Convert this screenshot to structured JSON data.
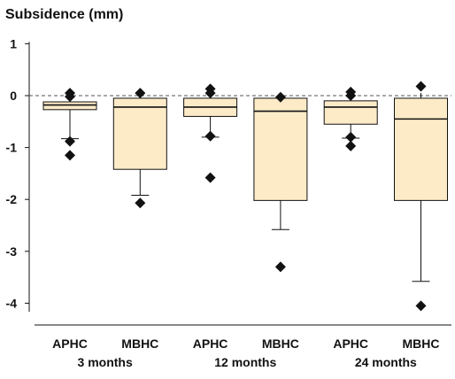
{
  "chart_data": {
    "type": "box",
    "title": "Subsidence (mm)",
    "ylabel": "Subsidence (mm)",
    "xlabel": "",
    "ylim": [
      -4.2,
      1.0
    ],
    "yticks": [
      1,
      0,
      -1,
      -2,
      -3,
      -4
    ],
    "ytick_labels": [
      "1",
      "0",
      "-1",
      "-2",
      "-3",
      "-4"
    ],
    "reference_line": {
      "y": 0,
      "style": "dashed"
    },
    "grid": false,
    "box_fill": "#fdebc8",
    "box_stroke": "#111111",
    "marker": "diamond",
    "categories": [
      "APHC",
      "MBHC",
      "APHC",
      "MBHC",
      "APHC",
      "MBHC"
    ],
    "groups": [
      {
        "label": "3 months",
        "categories": [
          "APHC",
          "MBHC"
        ]
      },
      {
        "label": "12 months",
        "categories": [
          "APHC",
          "MBHC"
        ]
      },
      {
        "label": "24 months",
        "categories": [
          "APHC",
          "MBHC"
        ]
      }
    ],
    "boxes": [
      {
        "category": "APHC",
        "group": "3 months",
        "whisker_high": -0.05,
        "q3": -0.12,
        "median": -0.18,
        "q1": -0.27,
        "whisker_low": -0.83,
        "outliers": [
          0.05,
          -0.02,
          -0.88,
          -1.15
        ]
      },
      {
        "category": "MBHC",
        "group": "3 months",
        "whisker_high": -0.05,
        "q3": -0.05,
        "median": -0.22,
        "q1": -1.42,
        "whisker_low": -1.92,
        "outliers": [
          0.05,
          -2.07
        ]
      },
      {
        "category": "APHC",
        "group": "12 months",
        "whisker_high": -0.05,
        "q3": -0.05,
        "median": -0.22,
        "q1": -0.4,
        "whisker_low": -0.8,
        "outliers": [
          0.13,
          0.05,
          -0.78,
          -1.58
        ]
      },
      {
        "category": "MBHC",
        "group": "12 months",
        "whisker_high": -0.05,
        "q3": -0.05,
        "median": -0.3,
        "q1": -2.02,
        "whisker_low": -2.58,
        "outliers": [
          -0.03,
          -3.3
        ]
      },
      {
        "category": "APHC",
        "group": "24 months",
        "whisker_high": -0.05,
        "q3": -0.1,
        "median": -0.22,
        "q1": -0.55,
        "whisker_low": -0.82,
        "outliers": [
          0.07,
          0.0,
          -0.8,
          -0.97
        ]
      },
      {
        "category": "MBHC",
        "group": "24 months",
        "whisker_high": 0.05,
        "q3": -0.05,
        "median": -0.45,
        "q1": -2.02,
        "whisker_low": -3.58,
        "outliers": [
          0.18,
          -4.05
        ]
      }
    ]
  }
}
